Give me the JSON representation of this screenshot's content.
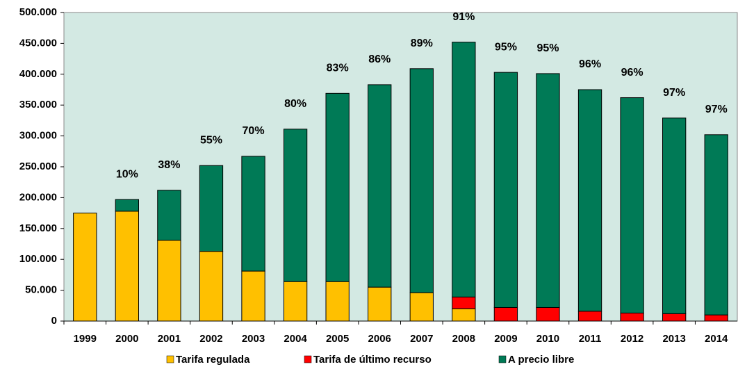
{
  "chart_data": {
    "type": "stacked_bar",
    "categories": [
      "1999",
      "2000",
      "2001",
      "2002",
      "2003",
      "2004",
      "2005",
      "2006",
      "2007",
      "2008",
      "2009",
      "2010",
      "2011",
      "2012",
      "2013",
      "2014"
    ],
    "series": [
      {
        "name": "Tarifa regulada",
        "color": "#FFC000",
        "values": [
          175000,
          178000,
          131000,
          113000,
          81000,
          64000,
          64000,
          55000,
          46000,
          20000,
          0,
          0,
          0,
          0,
          0,
          0
        ]
      },
      {
        "name": "Tarifa de último recurso",
        "color": "#FF0000",
        "values": [
          0,
          0,
          0,
          0,
          0,
          0,
          0,
          0,
          0,
          19000,
          22000,
          22000,
          16000,
          13000,
          12000,
          10000
        ]
      },
      {
        "name": "A precio libre",
        "color": "#007A56",
        "values": [
          0,
          19000,
          81000,
          139000,
          186000,
          247000,
          305000,
          328000,
          363000,
          413000,
          381000,
          379000,
          359000,
          349000,
          317000,
          292000
        ]
      }
    ],
    "annotations": [
      null,
      "10%",
      "38%",
      "55%",
      "70%",
      "80%",
      "83%",
      "86%",
      "89%",
      "91%",
      "95%",
      "95%",
      "96%",
      "96%",
      "97%",
      "97%"
    ],
    "ylim": [
      0,
      500000
    ],
    "yticks": [
      0,
      {
        "value": 50000,
        "label": "50.000"
      },
      {
        "value": 100000,
        "label": "100.000"
      },
      {
        "value": 150000,
        "label": "150.000"
      },
      {
        "value": 200000,
        "label": "200.000"
      },
      {
        "value": 250000,
        "label": "250.000"
      },
      {
        "value": 300000,
        "label": "300.000"
      },
      {
        "value": 350000,
        "label": "350.000"
      },
      {
        "value": 400000,
        "label": "400.000"
      },
      {
        "value": 450000,
        "label": "450.000"
      },
      {
        "value": 500000,
        "label": "500.000"
      }
    ],
    "legend": "bottom"
  }
}
